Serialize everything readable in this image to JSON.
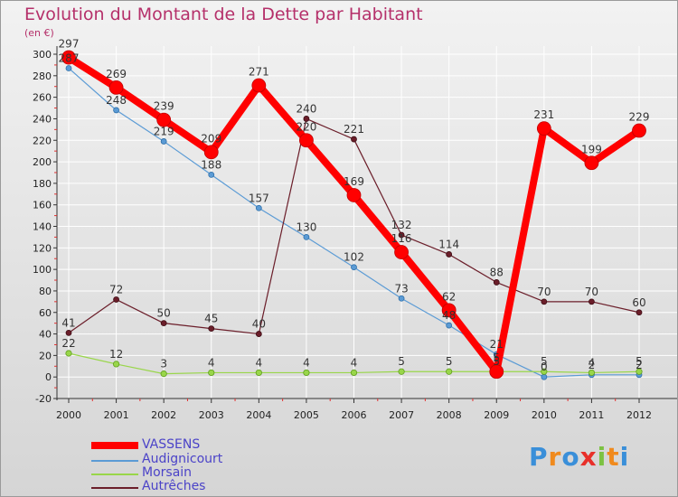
{
  "title": "Evolution du Montant de la Dette par Habitant",
  "unit_label": "(en €)",
  "colors": {
    "title": "#b5306a",
    "axis": "#333333",
    "grid": "#ffffff",
    "vassens": "#ff0000",
    "audignicourt": "#5b9bd5",
    "morsain": "#99d64a",
    "autreches": "#6b1e2a",
    "legend_text": "#4b43c8"
  },
  "logo": {
    "letters": [
      "P",
      "r",
      "o",
      "x",
      "i",
      "t",
      "i"
    ],
    "colors": [
      "#3a8fd9",
      "#f08a1d",
      "#3a8fd9",
      "#e8302a",
      "#7cc242",
      "#f08a1d",
      "#3a8fd9"
    ]
  },
  "chart_data": {
    "type": "line",
    "title": "Evolution du Montant de la Dette par Habitant",
    "ylabel": "(en €)",
    "xlabel": "",
    "x": [
      "2000",
      "2001",
      "2002",
      "2003",
      "2004",
      "2005",
      "2006",
      "2007",
      "2008",
      "2009",
      "2010",
      "2011",
      "2012"
    ],
    "ylim": [
      -20,
      300
    ],
    "yticks": [
      -20,
      0,
      20,
      40,
      60,
      80,
      100,
      120,
      140,
      160,
      180,
      200,
      220,
      240,
      260,
      280,
      300
    ],
    "yticks_text": [
      "-20",
      "0",
      "20",
      "40",
      "60",
      "80",
      "100",
      "120",
      "140",
      "160",
      "180",
      "200",
      "220",
      "240",
      "260",
      "280",
      "300"
    ],
    "grid": true,
    "legend_position": "bottom-left",
    "series": [
      {
        "name": "VASSENS",
        "values": [
          297,
          269,
          239,
          209,
          271,
          220,
          169,
          116,
          62,
          5,
          231,
          199,
          229
        ],
        "labels": [
          "297",
          "269",
          "239",
          "209",
          "271",
          "220",
          "169",
          "116",
          "62",
          "5",
          "231",
          "199",
          "229"
        ]
      },
      {
        "name": "Audignicourt",
        "values": [
          287,
          248,
          219,
          188,
          157,
          130,
          102,
          73,
          48,
          21,
          0,
          2,
          2
        ],
        "labels": [
          "287",
          "248",
          "219",
          "188",
          "157",
          "130",
          "102",
          "73",
          "48",
          "21",
          "0",
          "2",
          "2"
        ]
      },
      {
        "name": "Morsain",
        "values": [
          22,
          12,
          3,
          4,
          4,
          4,
          4,
          5,
          5,
          5,
          5,
          4,
          5
        ],
        "labels": [
          "22",
          "12",
          "3",
          "4",
          "4",
          "4",
          "4",
          "5",
          "5",
          "5",
          "5",
          "4",
          "5"
        ]
      },
      {
        "name": "Autrêches",
        "values": [
          41,
          72,
          50,
          45,
          40,
          240,
          221,
          132,
          114,
          88,
          70,
          70,
          60
        ],
        "labels": [
          "41",
          "72",
          "50",
          "45",
          "40",
          "240",
          "221",
          "132",
          "114",
          "88",
          "70",
          "70",
          "60"
        ]
      }
    ]
  }
}
